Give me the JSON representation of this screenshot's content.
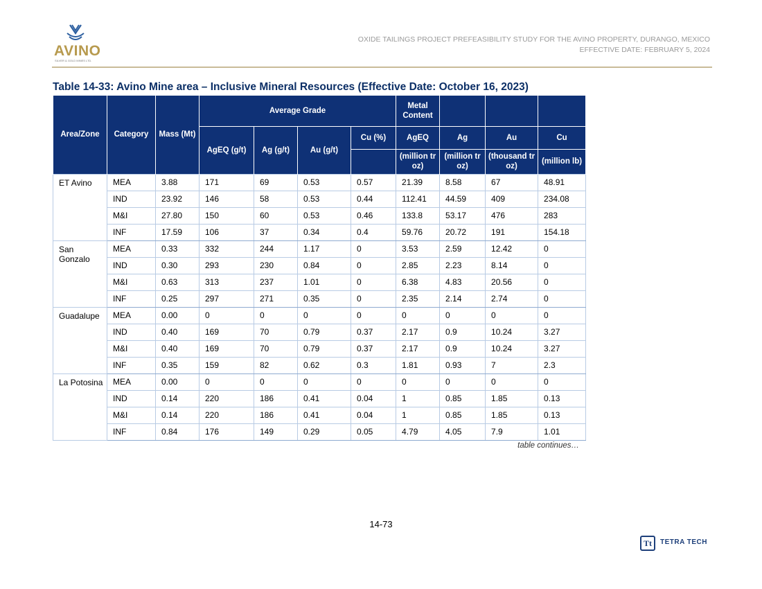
{
  "header": {
    "logo_text": "AVINO",
    "logo_subtext": "SILVER & GOLD MINES LTD.",
    "line1": "OXIDE TAILINGS PROJECT PREFEASIBILITY STUDY FOR THE AVINO PROPERTY, DURANGO, MEXICO",
    "line2": "EFFECTIVE DATE: FEBRUARY 5, 2024"
  },
  "table": {
    "title": "Table 14-33: Avino Mine area – Inclusive Mineral Resources (Effective Date: October 16, 2023)",
    "headers": {
      "area": "Area/Zone",
      "category": "Category",
      "mass": "Mass (Mt)",
      "average_grade": "Average Grade",
      "metal_content": "Metal Content",
      "ageq": "AgEQ (g/t)",
      "ag": "Ag (g/t)",
      "au": "Au (g/t)",
      "cu": "Cu (%)",
      "mc_ageq": "AgEQ",
      "mc_ag": "Ag",
      "mc_au": "Au",
      "mc_cu": "Cu",
      "mc_ageq_unit": "(million tr oz)",
      "mc_ag_unit": "(million tr oz)",
      "mc_au_unit": "(thousand tr oz)",
      "mc_cu_unit": "(million lb)"
    },
    "groups": [
      {
        "area": "ET Avino",
        "rows": [
          [
            "MEA",
            "3.88",
            "171",
            "69",
            "0.53",
            "0.57",
            "21.39",
            "8.58",
            "67",
            "48.91"
          ],
          [
            "IND",
            "23.92",
            "146",
            "58",
            "0.53",
            "0.44",
            "112.41",
            "44.59",
            "409",
            "234.08"
          ],
          [
            "M&I",
            "27.80",
            "150",
            "60",
            "0.53",
            "0.46",
            "133.8",
            "53.17",
            "476",
            "283"
          ],
          [
            "INF",
            "17.59",
            "106",
            "37",
            "0.34",
            "0.4",
            "59.76",
            "20.72",
            "191",
            "154.18"
          ]
        ]
      },
      {
        "area": "San Gonzalo",
        "rows": [
          [
            "MEA",
            "0.33",
            "332",
            "244",
            "1.17",
            "0",
            "3.53",
            "2.59",
            "12.42",
            "0"
          ],
          [
            "IND",
            "0.30",
            "293",
            "230",
            "0.84",
            "0",
            "2.85",
            "2.23",
            "8.14",
            "0"
          ],
          [
            "M&I",
            "0.63",
            "313",
            "237",
            "1.01",
            "0",
            "6.38",
            "4.83",
            "20.56",
            "0"
          ],
          [
            "INF",
            "0.25",
            "297",
            "271",
            "0.35",
            "0",
            "2.35",
            "2.14",
            "2.74",
            "0"
          ]
        ]
      },
      {
        "area": "Guadalupe",
        "rows": [
          [
            "MEA",
            "0.00",
            "0",
            "0",
            "0",
            "0",
            "0",
            "0",
            "0",
            "0"
          ],
          [
            "IND",
            "0.40",
            "169",
            "70",
            "0.79",
            "0.37",
            "2.17",
            "0.9",
            "10.24",
            "3.27"
          ],
          [
            "M&I",
            "0.40",
            "169",
            "70",
            "0.79",
            "0.37",
            "2.17",
            "0.9",
            "10.24",
            "3.27"
          ],
          [
            "INF",
            "0.35",
            "159",
            "82",
            "0.62",
            "0.3",
            "1.81",
            "0.93",
            "7",
            "2.3"
          ]
        ]
      },
      {
        "area": "La Potosina",
        "rows": [
          [
            "MEA",
            "0.00",
            "0",
            "0",
            "0",
            "0",
            "0",
            "0",
            "0",
            "0"
          ],
          [
            "IND",
            "0.14",
            "220",
            "186",
            "0.41",
            "0.04",
            "1",
            "0.85",
            "1.85",
            "0.13"
          ],
          [
            "M&I",
            "0.14",
            "220",
            "186",
            "0.41",
            "0.04",
            "1",
            "0.85",
            "1.85",
            "0.13"
          ],
          [
            "INF",
            "0.84",
            "176",
            "149",
            "0.29",
            "0.05",
            "4.79",
            "4.05",
            "7.9",
            "1.01"
          ]
        ]
      }
    ],
    "continues": "table continues…"
  },
  "footer": {
    "page_number": "14-73",
    "brand_icon": "Tt",
    "brand_text": "TETRA TECH"
  },
  "colors": {
    "header_bg": "#0f3176",
    "title": "#0c2f66",
    "rule": "#c9bb98",
    "logo": "#b79a4e"
  }
}
